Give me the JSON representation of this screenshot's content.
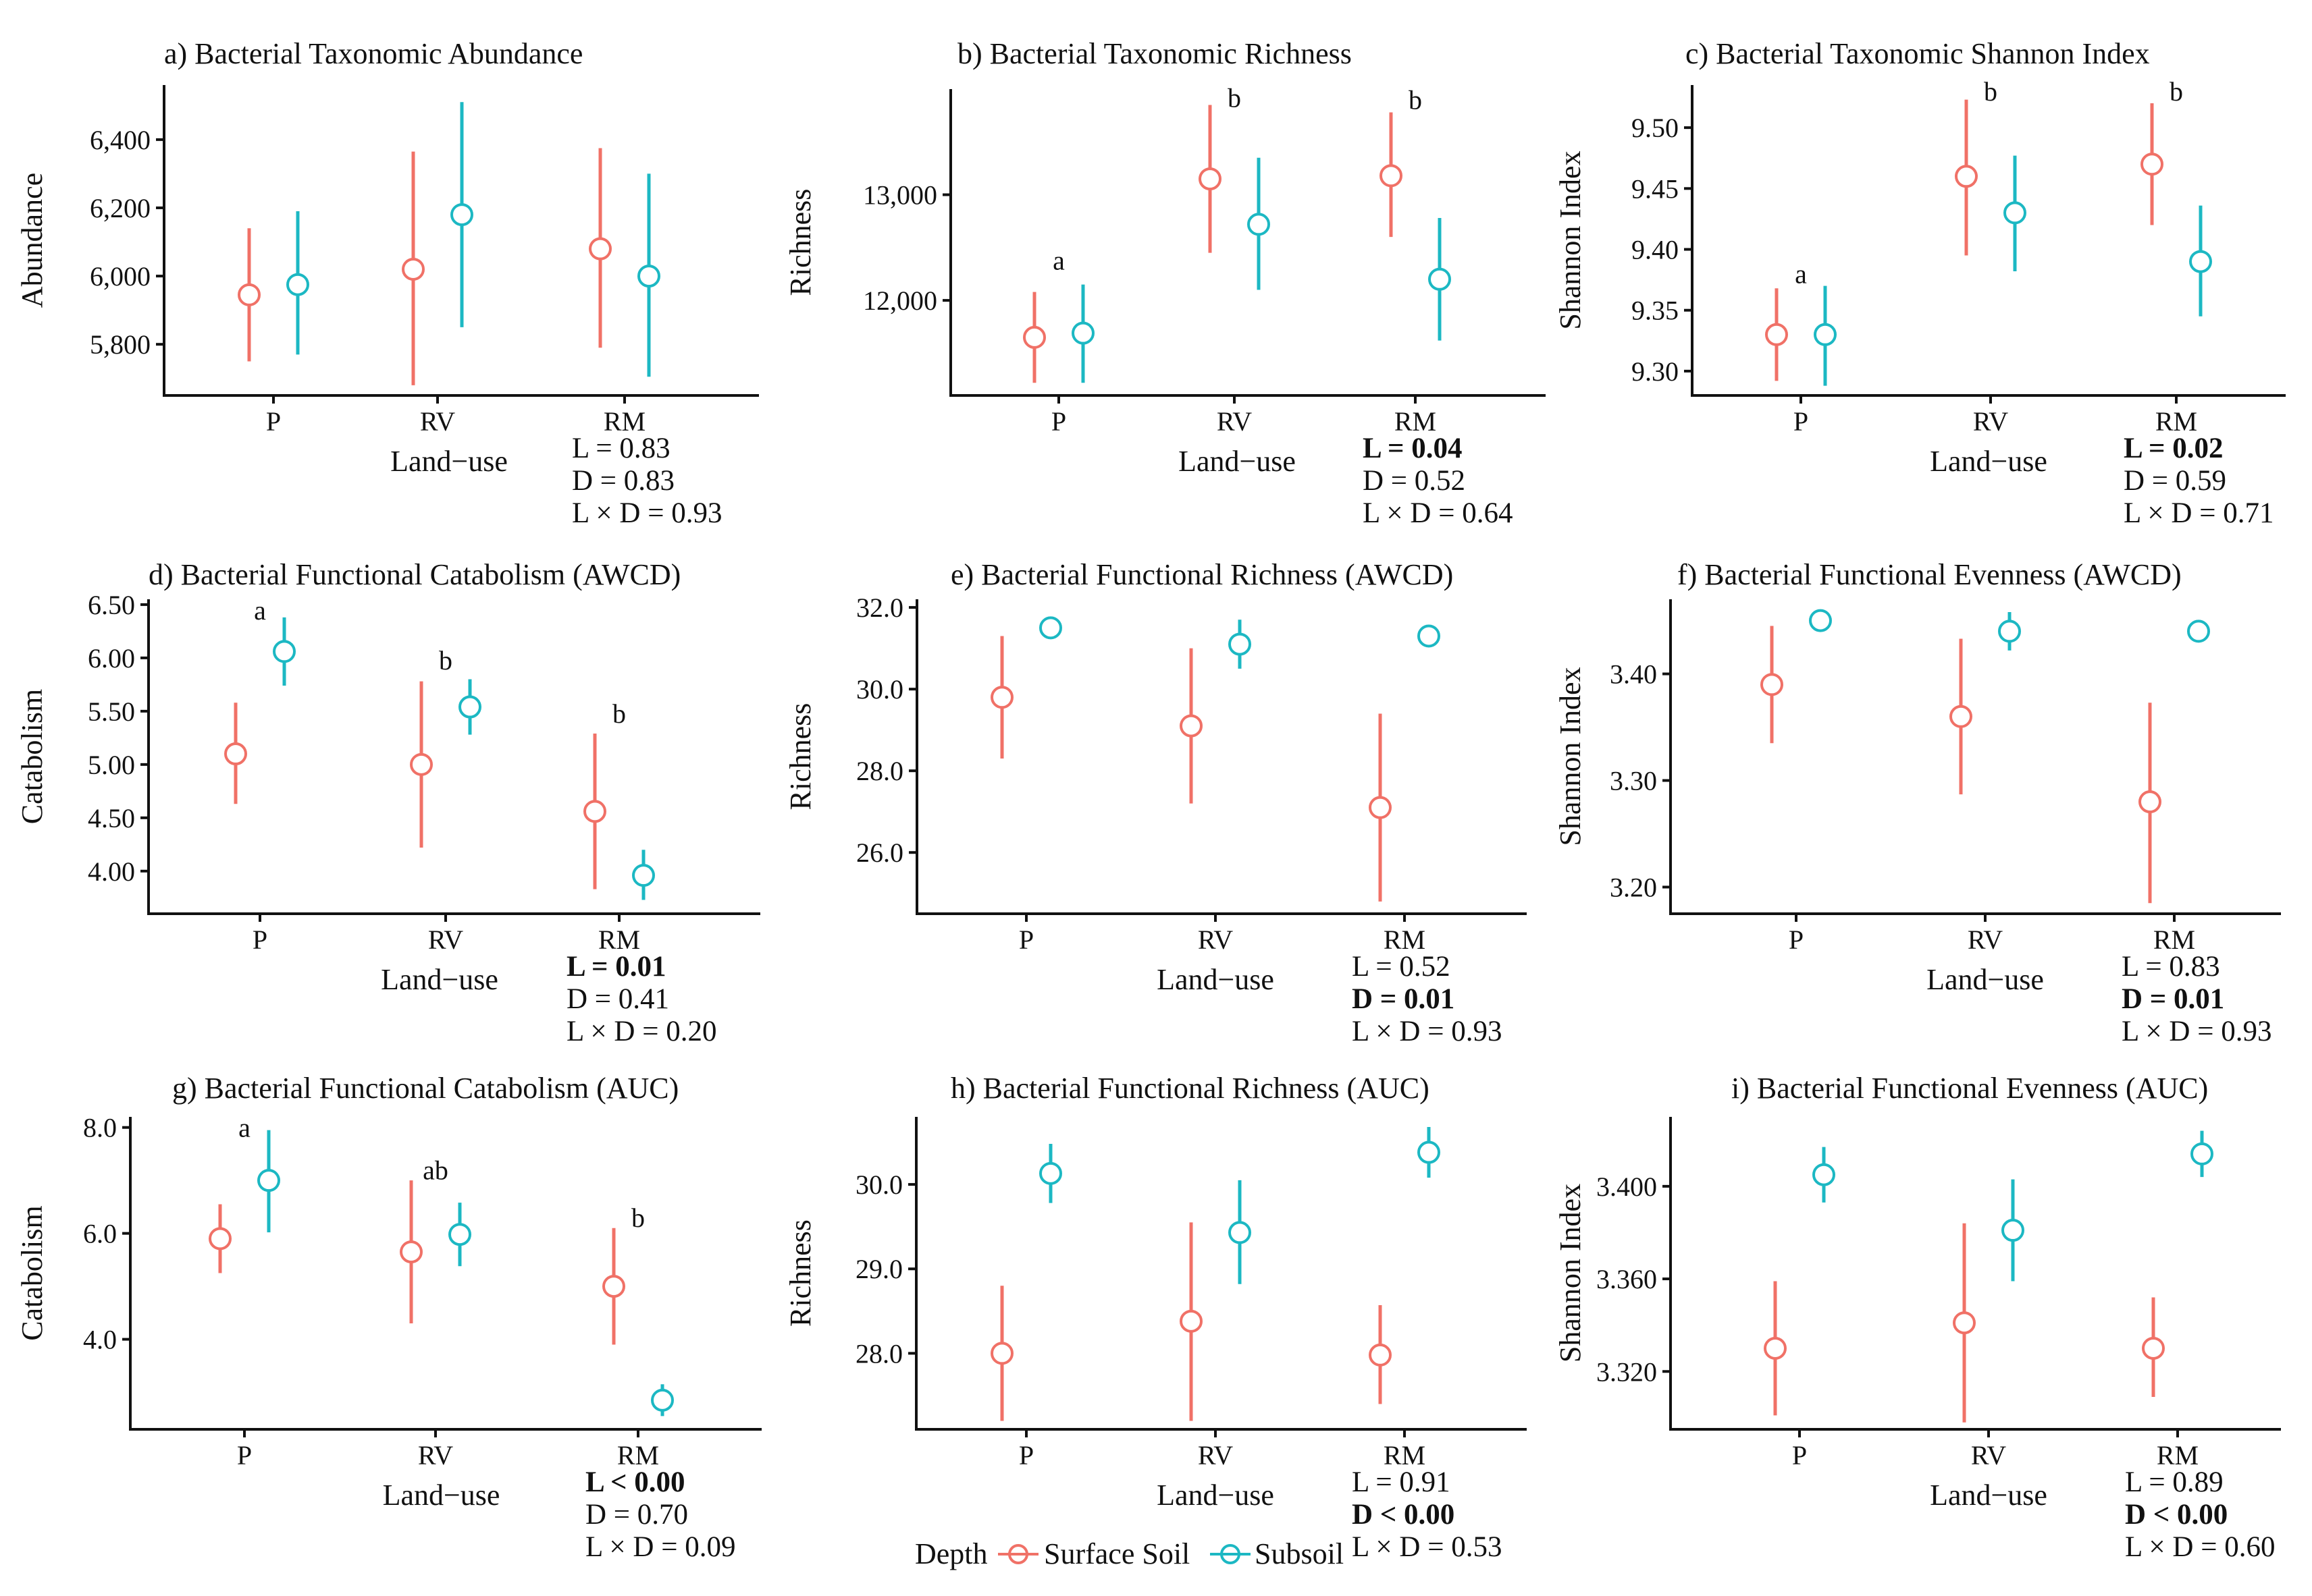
{
  "colors": {
    "surface": "#F07167",
    "subsoil": "#1CB8C3",
    "axis": "#111111"
  },
  "legend": {
    "title": "Depth",
    "surface_label": "Surface Soil",
    "subsoil_label": "Subsoil"
  },
  "chart_data": [
    {
      "id": "a",
      "type": "scatter",
      "title": "a) Bacterial Taxonomic Abundance",
      "xlabel": "Land−use",
      "ylabel": "Abundance",
      "categories": [
        "P",
        "RV",
        "RM"
      ],
      "ylim": [
        5650,
        6560
      ],
      "yticks": [
        5800,
        6000,
        6200,
        6400
      ],
      "ytick_labels": [
        "5,800",
        "6,000",
        "6,200",
        "6,400"
      ],
      "series": [
        {
          "name": "Surface Soil",
          "color": "surface",
          "mean": [
            5945,
            6020,
            6080
          ],
          "low": [
            5750,
            5680,
            5790
          ],
          "high": [
            6140,
            6365,
            6375
          ]
        },
        {
          "name": "Subsoil",
          "color": "subsoil",
          "mean": [
            5975,
            6180,
            6000
          ],
          "low": [
            5770,
            5850,
            5705
          ],
          "high": [
            6190,
            6510,
            6300
          ]
        }
      ],
      "letters": [],
      "stats": [
        {
          "text": "L = 0.83",
          "bold": false
        },
        {
          "text": "D = 0.83",
          "bold": false
        },
        {
          "text": "L × D = 0.93",
          "bold": false
        }
      ]
    },
    {
      "id": "b",
      "type": "scatter",
      "title": "b) Bacterial Taxonomic Richness",
      "xlabel": "Land−use",
      "ylabel": "Richness",
      "categories": [
        "P",
        "RV",
        "RM"
      ],
      "ylim": [
        11100,
        14000
      ],
      "yticks": [
        12000,
        13000
      ],
      "ytick_labels": [
        "12,000",
        "13,000"
      ],
      "series": [
        {
          "name": "Surface Soil",
          "color": "surface",
          "mean": [
            11650,
            13150,
            13180
          ],
          "low": [
            11220,
            12450,
            12600
          ],
          "high": [
            12080,
            13850,
            13780
          ]
        },
        {
          "name": "Subsoil",
          "color": "subsoil",
          "mean": [
            11690,
            12720,
            12200
          ],
          "low": [
            11220,
            12100,
            11620
          ],
          "high": [
            12150,
            13350,
            12780
          ]
        }
      ],
      "letters": [
        {
          "text": "a",
          "cat": 0,
          "y": 12380
        },
        {
          "text": "b",
          "cat": 1,
          "y": 13920
        },
        {
          "text": "b",
          "cat": 2,
          "y": 13900
        }
      ],
      "stats": [
        {
          "text": "L = 0.04",
          "bold": true
        },
        {
          "text": "D = 0.52",
          "bold": false
        },
        {
          "text": "L × D = 0.64",
          "bold": false
        }
      ]
    },
    {
      "id": "c",
      "type": "scatter",
      "title": "c) Bacterial Taxonomic Shannon Index",
      "xlabel": "Land−use",
      "ylabel": "Shannon Index",
      "categories": [
        "P",
        "RV",
        "RM"
      ],
      "ylim": [
        9.28,
        9.535
      ],
      "yticks": [
        9.3,
        9.35,
        9.4,
        9.45,
        9.5
      ],
      "ytick_labels": [
        "9.30",
        "9.35",
        "9.40",
        "9.45",
        "9.50"
      ],
      "series": [
        {
          "name": "Surface Soil",
          "color": "surface",
          "mean": [
            9.33,
            9.46,
            9.47
          ],
          "low": [
            9.292,
            9.395,
            9.42
          ],
          "high": [
            9.368,
            9.523,
            9.52
          ]
        },
        {
          "name": "Subsoil",
          "color": "subsoil",
          "mean": [
            9.33,
            9.43,
            9.39
          ],
          "low": [
            9.288,
            9.382,
            9.345
          ],
          "high": [
            9.37,
            9.477,
            9.436
          ]
        }
      ],
      "letters": [
        {
          "text": "a",
          "cat": 0,
          "y": 9.38
        },
        {
          "text": "b",
          "cat": 1,
          "y": 9.53
        },
        {
          "text": "b",
          "cat": 2,
          "y": 9.53
        }
      ],
      "stats": [
        {
          "text": "L = 0.02",
          "bold": true
        },
        {
          "text": "D = 0.59",
          "bold": false
        },
        {
          "text": "L × D = 0.71",
          "bold": false
        }
      ]
    },
    {
      "id": "d",
      "type": "scatter",
      "title": "d) Bacterial Functional Catabolism (AWCD)",
      "xlabel": "Land−use",
      "ylabel": "Catabolism",
      "categories": [
        "P",
        "RV",
        "RM"
      ],
      "ylim": [
        3.6,
        6.55
      ],
      "yticks": [
        4.0,
        4.5,
        5.0,
        5.5,
        6.0,
        6.5
      ],
      "ytick_labels": [
        "4.00",
        "4.50",
        "5.00",
        "5.50",
        "6.00",
        "6.50"
      ],
      "series": [
        {
          "name": "Surface Soil",
          "color": "surface",
          "mean": [
            5.1,
            5.0,
            4.56
          ],
          "low": [
            4.63,
            4.22,
            3.83
          ],
          "high": [
            5.58,
            5.78,
            5.29
          ]
        },
        {
          "name": "Subsoil",
          "color": "subsoil",
          "mean": [
            6.06,
            5.54,
            3.96
          ],
          "low": [
            5.74,
            5.28,
            3.73
          ],
          "high": [
            6.38,
            5.8,
            4.2
          ]
        }
      ],
      "letters": [
        {
          "text": "a",
          "cat": 0,
          "y": 6.45
        },
        {
          "text": "b",
          "cat": 1,
          "y": 5.98
        },
        {
          "text": "b",
          "cat": 2,
          "y": 5.48
        }
      ],
      "stats": [
        {
          "text": "L = 0.01",
          "bold": true
        },
        {
          "text": "D = 0.41",
          "bold": false
        },
        {
          "text": "L × D = 0.20",
          "bold": false
        }
      ]
    },
    {
      "id": "e",
      "type": "scatter",
      "title": "e) Bacterial Functional Richness (AWCD)",
      "xlabel": "Land−use",
      "ylabel": "Richness",
      "categories": [
        "P",
        "RV",
        "RM"
      ],
      "ylim": [
        24.5,
        32.2
      ],
      "yticks": [
        26.0,
        28.0,
        30.0,
        32.0
      ],
      "ytick_labels": [
        "26.0",
        "28.0",
        "30.0",
        "32.0"
      ],
      "series": [
        {
          "name": "Surface Soil",
          "color": "surface",
          "mean": [
            29.8,
            29.1,
            27.1
          ],
          "low": [
            28.3,
            27.2,
            24.8
          ],
          "high": [
            31.3,
            31.0,
            29.4
          ]
        },
        {
          "name": "Subsoil",
          "color": "subsoil",
          "mean": [
            31.5,
            31.1,
            31.3
          ],
          "low": [
            31.3,
            30.5,
            31.1
          ],
          "high": [
            31.7,
            31.7,
            31.5
          ]
        }
      ],
      "letters": [],
      "stats": [
        {
          "text": "L = 0.52",
          "bold": false
        },
        {
          "text": "D = 0.01",
          "bold": true
        },
        {
          "text": "L × D = 0.93",
          "bold": false
        }
      ]
    },
    {
      "id": "f",
      "type": "scatter",
      "title": "f) Bacterial Functional Evenness (AWCD)",
      "xlabel": "Land−use",
      "ylabel": "Shannon Index",
      "categories": [
        "P",
        "RV",
        "RM"
      ],
      "ylim": [
        3.175,
        3.47
      ],
      "yticks": [
        3.2,
        3.3,
        3.4
      ],
      "ytick_labels": [
        "3.20",
        "3.30",
        "3.40"
      ],
      "series": [
        {
          "name": "Surface Soil",
          "color": "surface",
          "mean": [
            3.39,
            3.36,
            3.28
          ],
          "low": [
            3.335,
            3.287,
            3.185
          ],
          "high": [
            3.445,
            3.433,
            3.373
          ]
        },
        {
          "name": "Subsoil",
          "color": "subsoil",
          "mean": [
            3.45,
            3.44,
            3.44
          ],
          "low": [
            3.445,
            3.422,
            3.435
          ],
          "high": [
            3.455,
            3.458,
            3.445
          ]
        }
      ],
      "letters": [],
      "stats": [
        {
          "text": "L = 0.83",
          "bold": false
        },
        {
          "text": "D = 0.01",
          "bold": true
        },
        {
          "text": "L × D = 0.93",
          "bold": false
        }
      ]
    },
    {
      "id": "g",
      "type": "scatter",
      "title": "g) Bacterial Functional Catabolism (AUC)",
      "xlabel": "Land−use",
      "ylabel": "Catabolism",
      "categories": [
        "P",
        "RV",
        "RM"
      ],
      "ylim": [
        2.3,
        8.2
      ],
      "yticks": [
        4.0,
        6.0,
        8.0
      ],
      "ytick_labels": [
        "4.0",
        "6.0",
        "8.0"
      ],
      "series": [
        {
          "name": "Surface Soil",
          "color": "surface",
          "mean": [
            5.9,
            5.65,
            5.0
          ],
          "low": [
            5.25,
            4.3,
            3.9
          ],
          "high": [
            6.55,
            7.0,
            6.1
          ]
        },
        {
          "name": "Subsoil",
          "color": "subsoil",
          "mean": [
            7.0,
            5.98,
            2.85
          ],
          "low": [
            6.02,
            5.38,
            2.55
          ],
          "high": [
            7.95,
            6.58,
            3.15
          ]
        }
      ],
      "letters": [
        {
          "text": "a",
          "cat": 0,
          "y": 8.0
        },
        {
          "text": "ab",
          "cat": 1,
          "y": 7.2
        },
        {
          "text": "b",
          "cat": 2,
          "y": 6.3
        }
      ],
      "stats": [
        {
          "text": "L < 0.00",
          "bold": true
        },
        {
          "text": "D = 0.70",
          "bold": false
        },
        {
          "text": "L × D = 0.09",
          "bold": false
        }
      ]
    },
    {
      "id": "h",
      "type": "scatter",
      "title": "h) Bacterial Functional Richness (AUC)",
      "xlabel": "Land−use",
      "ylabel": "Richness",
      "categories": [
        "P",
        "RV",
        "RM"
      ],
      "ylim": [
        27.1,
        30.8
      ],
      "yticks": [
        28.0,
        29.0,
        30.0
      ],
      "ytick_labels": [
        "28.0",
        "29.0",
        "30.0"
      ],
      "series": [
        {
          "name": "Surface Soil",
          "color": "surface",
          "mean": [
            28.0,
            28.38,
            27.98
          ],
          "low": [
            27.2,
            27.2,
            27.4
          ],
          "high": [
            28.8,
            29.55,
            28.57
          ]
        },
        {
          "name": "Subsoil",
          "color": "subsoil",
          "mean": [
            30.13,
            29.43,
            30.38
          ],
          "low": [
            29.78,
            28.82,
            30.08
          ],
          "high": [
            30.48,
            30.05,
            30.68
          ]
        }
      ],
      "letters": [],
      "stats": [
        {
          "text": "L = 0.91",
          "bold": false
        },
        {
          "text": "D < 0.00",
          "bold": true
        },
        {
          "text": "L × D = 0.53",
          "bold": false
        }
      ]
    },
    {
      "id": "i",
      "type": "scatter",
      "title": "i) Bacterial Functional Evenness (AUC)",
      "xlabel": "Land−use",
      "ylabel": "Shannon Index",
      "categories": [
        "P",
        "RV",
        "RM"
      ],
      "ylim": [
        3.295,
        3.43
      ],
      "yticks": [
        3.32,
        3.36,
        3.4
      ],
      "ytick_labels": [
        "3.320",
        "3.360",
        "3.400"
      ],
      "series": [
        {
          "name": "Surface Soil",
          "color": "surface",
          "mean": [
            3.33,
            3.341,
            3.33
          ],
          "low": [
            3.301,
            3.298,
            3.309
          ],
          "high": [
            3.359,
            3.384,
            3.352
          ]
        },
        {
          "name": "Subsoil",
          "color": "subsoil",
          "mean": [
            3.405,
            3.381,
            3.414
          ],
          "low": [
            3.393,
            3.359,
            3.404
          ],
          "high": [
            3.417,
            3.403,
            3.424
          ]
        }
      ],
      "letters": [],
      "stats": [
        {
          "text": "L = 0.89",
          "bold": false
        },
        {
          "text": "D < 0.00",
          "bold": true
        },
        {
          "text": "L × D = 0.60",
          "bold": false
        }
      ]
    }
  ]
}
